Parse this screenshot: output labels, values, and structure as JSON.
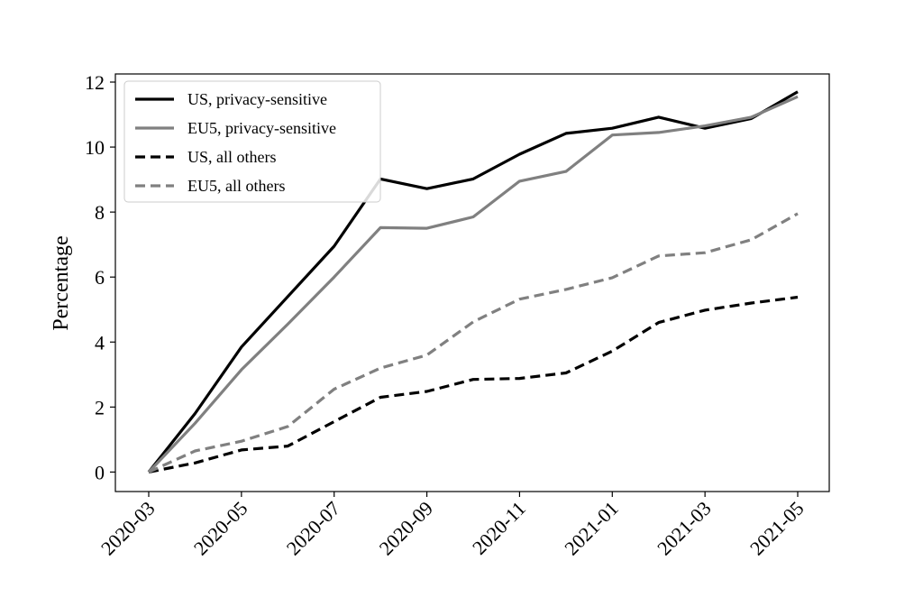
{
  "chart_data": {
    "type": "line",
    "title": "",
    "xlabel": "",
    "ylabel": "Percentage",
    "x": [
      "2020-03",
      "2020-04",
      "2020-05",
      "2020-06",
      "2020-07",
      "2020-08",
      "2020-09",
      "2020-10",
      "2020-11",
      "2020-12",
      "2021-01",
      "2021-02",
      "2021-03",
      "2021-04",
      "2021-05"
    ],
    "xticks": [
      "2020-03",
      "2020-05",
      "2020-07",
      "2020-09",
      "2020-11",
      "2021-01",
      "2021-03",
      "2021-05"
    ],
    "ylim": [
      -0.6,
      12.25
    ],
    "yticks": [
      0,
      2,
      4,
      6,
      8,
      10,
      12
    ],
    "grid": false,
    "legend_position": "upper-left",
    "series": [
      {
        "name": "US, privacy-sensitive",
        "color": "#000000",
        "dash": "solid",
        "values": [
          0,
          1.8,
          3.85,
          5.4,
          6.95,
          9.02,
          8.72,
          9.02,
          9.78,
          10.42,
          10.58,
          10.92,
          10.58,
          10.88,
          11.7
        ]
      },
      {
        "name": "EU5, privacy-sensitive",
        "color": "#808080",
        "dash": "solid",
        "values": [
          0,
          1.5,
          3.15,
          4.55,
          6.0,
          7.52,
          7.5,
          7.85,
          8.95,
          9.25,
          10.37,
          10.45,
          10.65,
          10.92,
          11.55
        ]
      },
      {
        "name": "US, all others",
        "color": "#000000",
        "dash": "dashed",
        "values": [
          0,
          0.28,
          0.68,
          0.8,
          1.55,
          2.3,
          2.48,
          2.85,
          2.88,
          3.05,
          3.72,
          4.6,
          4.98,
          5.2,
          5.38
        ]
      },
      {
        "name": "EU5, all others",
        "color": "#808080",
        "dash": "dashed",
        "values": [
          0,
          0.65,
          0.95,
          1.4,
          2.55,
          3.2,
          3.6,
          4.62,
          5.32,
          5.62,
          5.98,
          6.65,
          6.75,
          7.15,
          7.95
        ]
      }
    ]
  }
}
